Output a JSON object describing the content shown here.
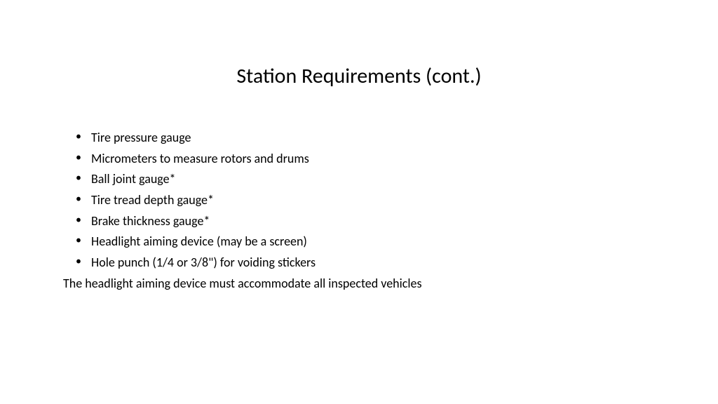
{
  "slide": {
    "title": "Station Requirements (cont.)",
    "bullets": [
      "Tire pressure gauge",
      "Micrometers to measure rotors and drums",
      "Ball joint gauge*",
      "Tire tread depth gauge*",
      "Brake thickness gauge*",
      "Headlight aiming device (may be a screen)",
      "Hole punch (1/4 or 3/8\") for voiding stickers"
    ],
    "footer": "The headlight aiming device must accommodate all inspected vehicles"
  },
  "styling": {
    "background_color": "#ffffff",
    "text_color": "#000000",
    "title_fontsize": 30,
    "body_fontsize": 18,
    "font_family": "Calibri",
    "slide_width": 1024,
    "slide_height": 576
  }
}
